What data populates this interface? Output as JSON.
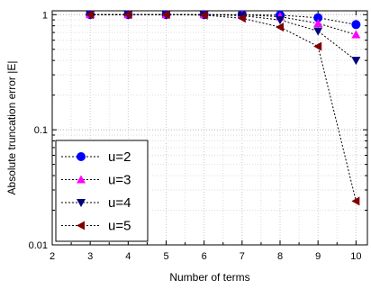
{
  "chart_data": {
    "type": "line",
    "title": "",
    "xlabel": "Number of terms",
    "ylabel": "Absolute truncation error |E|",
    "xlim": [
      2,
      10.3
    ],
    "ylim": [
      0.01,
      1.08
    ],
    "yscale": "log",
    "x_ticks": [
      2,
      3,
      4,
      5,
      6,
      7,
      8,
      9,
      10
    ],
    "y_ticks": [
      {
        "value": 0.01,
        "label": "0.01"
      },
      {
        "value": 0.1,
        "label": "0.1"
      },
      {
        "value": 1,
        "label": "1"
      }
    ],
    "grid": true,
    "legend_position": "bottom-left",
    "series": [
      {
        "name": "u=2",
        "color": "#0000ff",
        "marker": "circle",
        "x": [
          3,
          4,
          5,
          6,
          7,
          8,
          9,
          10
        ],
        "y": [
          1.0,
          1.0,
          1.0,
          1.0,
          0.999,
          0.99,
          0.94,
          0.82
        ]
      },
      {
        "name": "u=3",
        "color": "#ff00ff",
        "marker": "triangle-up",
        "x": [
          3,
          4,
          5,
          6,
          7,
          8,
          9,
          10
        ],
        "y": [
          1.0,
          1.0,
          1.0,
          1.0,
          0.997,
          0.96,
          0.84,
          0.67
        ]
      },
      {
        "name": "u=4",
        "color": "#000080",
        "marker": "triangle-down",
        "x": [
          3,
          4,
          5,
          6,
          7,
          8,
          9,
          10
        ],
        "y": [
          1.0,
          1.0,
          1.0,
          0.999,
          0.98,
          0.9,
          0.72,
          0.4
        ]
      },
      {
        "name": "u=5",
        "color": "#800000",
        "marker": "triangle-left",
        "x": [
          3,
          4,
          5,
          6,
          7,
          8,
          9,
          10
        ],
        "y": [
          1.0,
          1.0,
          1.0,
          0.99,
          0.93,
          0.78,
          0.53,
          0.024
        ]
      }
    ]
  }
}
